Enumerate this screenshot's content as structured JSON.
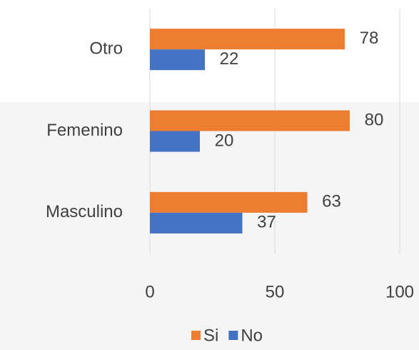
{
  "chart_data": {
    "type": "bar",
    "orientation": "horizontal",
    "categories": [
      "Masculino",
      "Femenino",
      "Otro"
    ],
    "series": [
      {
        "name": "Si",
        "color": "#ED7D31",
        "values": [
          63,
          80,
          78
        ]
      },
      {
        "name": "No",
        "color": "#4472C4",
        "values": [
          37,
          20,
          22
        ]
      }
    ],
    "xlim": [
      0,
      100
    ],
    "xticks": [
      0,
      50,
      100
    ],
    "grid": true,
    "legend": "bottom"
  }
}
